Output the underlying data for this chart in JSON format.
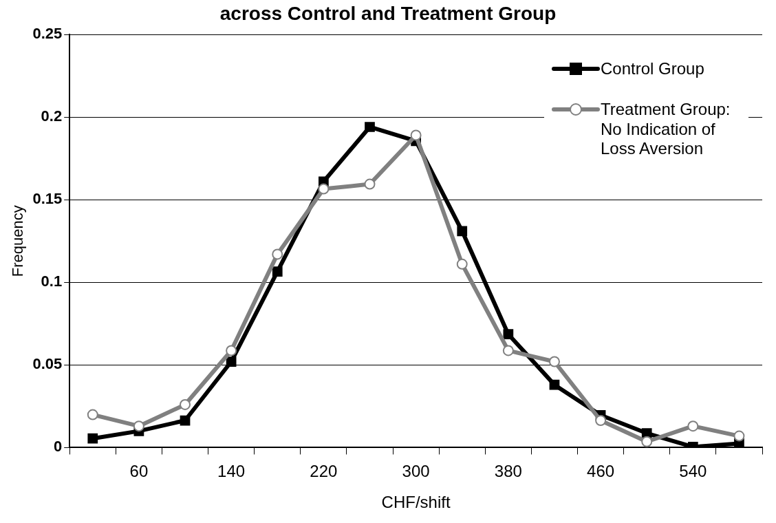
{
  "chart_data": {
    "type": "line",
    "title": "across Control and Treatment Group",
    "xlabel": "CHF/shift",
    "ylabel": "Frequency",
    "categories": [
      null,
      "60",
      null,
      "140",
      null,
      "220",
      null,
      "300",
      null,
      "380",
      null,
      "460",
      null,
      "540",
      null
    ],
    "series": [
      {
        "name": "Control Group",
        "color": "#000000",
        "marker": "square",
        "values": [
          0.0055,
          0.01,
          0.0164,
          0.052,
          0.1065,
          0.161,
          0.194,
          0.1855,
          0.131,
          0.0686,
          0.038,
          0.0196,
          0.0087,
          0.0004,
          0.0025
        ]
      },
      {
        "name": "Treatment Group: No Indication of Loss Aversion",
        "color": "#808080",
        "marker": "circle",
        "values": [
          0.0199,
          0.013,
          0.026,
          0.0587,
          0.117,
          0.1565,
          0.1594,
          0.189,
          0.111,
          0.0587,
          0.052,
          0.0164,
          0.0036,
          0.013,
          0.007
        ]
      }
    ],
    "ylim": [
      0,
      0.25
    ],
    "yticks": [
      0,
      0.05,
      0.1,
      0.15,
      0.2,
      0.25
    ],
    "grid": "y",
    "legend": "top right",
    "line_style": "solid"
  }
}
